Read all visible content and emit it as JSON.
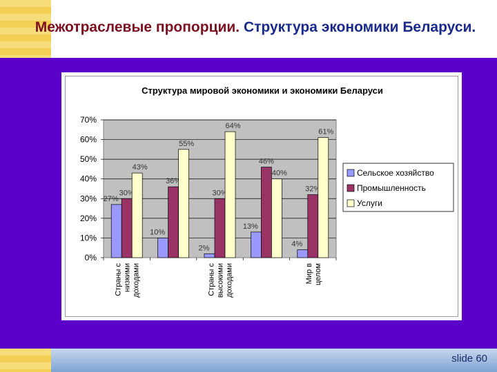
{
  "slide": {
    "title_part1": "Межотраслевые пропорции.",
    "title_part2": "Структура экономики Беларуси.",
    "number": "slide 60"
  },
  "colors": {
    "background_panel": "#5a00c8",
    "title_dark_red": "#7a1020",
    "title_blue": "#1a2a8a"
  },
  "chart_data": {
    "type": "bar",
    "title": "Структура мировой экономики и экономики Беларуси",
    "categories": [
      "Страны с низкими доходами",
      "Страны с высокими доходами",
      "Мир в целом"
    ],
    "category_labels": [
      [
        "Страны с",
        "низкими",
        "доходами"
      ],
      [
        "Страны с",
        "высокими",
        "доходами"
      ],
      [
        "Мир в",
        "целом"
      ]
    ],
    "groups": [
      {
        "values": [
          27,
          30,
          43
        ]
      },
      {
        "values": [
          10,
          36,
          55
        ]
      },
      {
        "values": [
          2,
          30,
          64
        ]
      },
      {
        "values": [
          13,
          46,
          40
        ]
      },
      {
        "values": [
          4,
          32,
          61
        ]
      }
    ],
    "group_category_index": [
      0,
      null,
      1,
      null,
      2
    ],
    "series": [
      {
        "name": "Сельское хозяйство",
        "color": "#9999ff"
      },
      {
        "name": "Промышленность",
        "color": "#993366"
      },
      {
        "name": "Услуги",
        "color": "#ffffcc"
      }
    ],
    "value_labels": [
      [
        "27%",
        "30%",
        "43%"
      ],
      [
        "10%",
        "36%",
        "55%"
      ],
      [
        "2%",
        "30%",
        "64%"
      ],
      [
        "13%",
        "46%",
        "40%"
      ],
      [
        "4%",
        "32%",
        "61%"
      ]
    ],
    "y_ticks": [
      "0%",
      "10%",
      "20%",
      "30%",
      "40%",
      "50%",
      "60%",
      "70%"
    ],
    "ylim": [
      0,
      70
    ],
    "grid": true,
    "plot_background": "#c0c0c0",
    "legend": "right"
  }
}
